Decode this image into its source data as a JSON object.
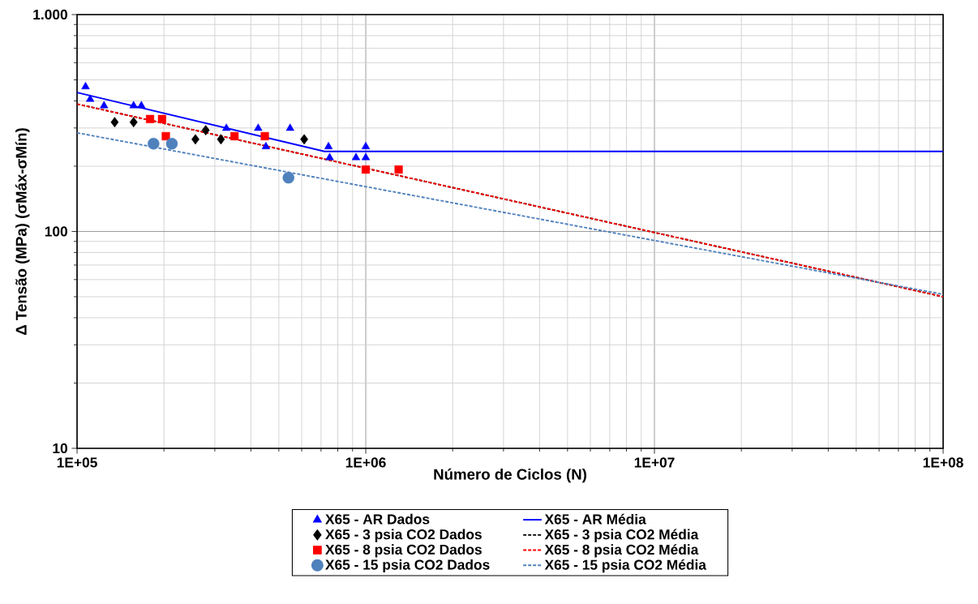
{
  "chart_data": {
    "type": "scatter",
    "xlabel": "Número de Ciclos (N)",
    "ylabel": "Δ Tensão (MPa) (σMáx-σMín)",
    "log": "xy",
    "xlim": [
      100000,
      100000000
    ],
    "ylim": [
      10,
      1000
    ],
    "xticks": [
      {
        "value": 100000,
        "label": "1E+05"
      },
      {
        "value": 1000000,
        "label": "1E+06"
      },
      {
        "value": 10000000,
        "label": "1E+07"
      },
      {
        "value": 100000000,
        "label": "1E+08"
      }
    ],
    "yticks": [
      {
        "value": 10,
        "label": "10"
      },
      {
        "value": 100,
        "label": "100"
      },
      {
        "value": 1000,
        "label": "1.000"
      }
    ],
    "grid": true,
    "legend": "bottom",
    "series": [
      {
        "name": "X65 - AR Dados",
        "marker": "triangle",
        "color": "#0000ff",
        "x": [
          107000,
          111000,
          124000,
          157000,
          167000,
          329000,
          424000,
          547000,
          451000,
          743000,
          750000,
          925000,
          1000000,
          1000000
        ],
        "values": [
          465,
          407,
          380,
          380,
          380,
          299,
          299,
          299,
          246,
          246,
          219,
          219,
          246,
          219
        ]
      },
      {
        "name": "X65 - AR Média",
        "type": "line",
        "marker": "none",
        "line_style": "solid",
        "color": "#0000ff",
        "x": [
          100000,
          719000,
          100000000
        ],
        "values": [
          437,
          234,
          234
        ]
      },
      {
        "name": "X65 - 3 psia CO2 Dados",
        "marker": "diamond",
        "color": "#000000",
        "x": [
          135000,
          157000,
          257000,
          279000,
          315000,
          612000
        ],
        "values": [
          319,
          319,
          266,
          293,
          266,
          266
        ]
      },
      {
        "name": "X65 - 3 psia CO2 Média",
        "type": "line",
        "marker": "none",
        "line_style": "dashed",
        "color": "#000000",
        "x": [
          100000,
          100000000
        ],
        "values": [
          387,
          50
        ]
      },
      {
        "name": "X65 - 8 psia CO2 Dados",
        "marker": "square",
        "color": "#ff0000",
        "x": [
          179000,
          197000,
          203000,
          351000,
          447000,
          1000000,
          1300000
        ],
        "values": [
          330,
          330,
          275,
          275,
          275,
          193,
          193
        ]
      },
      {
        "name": "X65 - 8 psia CO2 Média",
        "type": "line",
        "marker": "none",
        "line_style": "dashed",
        "color": "#ff0000",
        "x": [
          100000,
          100000000
        ],
        "values": [
          387,
          50
        ]
      },
      {
        "name": "X65 - 15 psia CO2 Dados",
        "marker": "circle",
        "color": "#4f81bd",
        "x": [
          184000,
          213000,
          540000
        ],
        "values": [
          254,
          254,
          177
        ]
      },
      {
        "name": "X65 - 15 psia CO2 Média",
        "type": "line",
        "marker": "none",
        "line_style": "dashed",
        "color": "#4f81bd",
        "x": [
          100000,
          100000000
        ],
        "values": [
          285,
          51.3
        ]
      }
    ]
  }
}
